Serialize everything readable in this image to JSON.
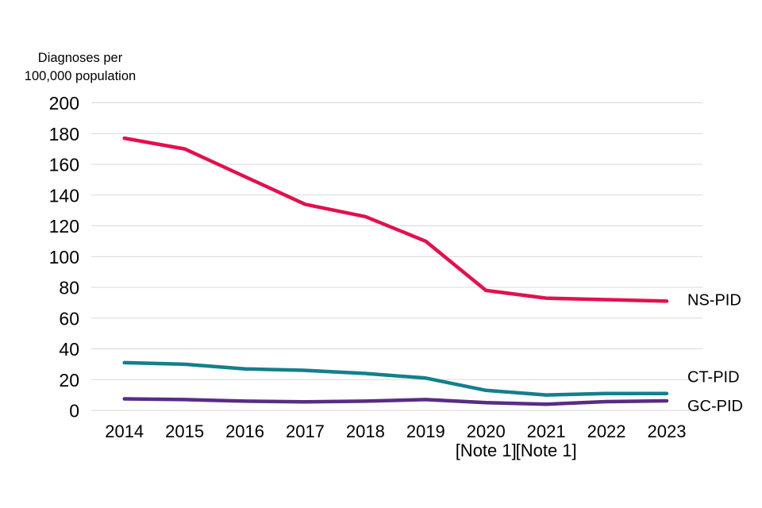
{
  "page": {
    "background_color": "#ffffff"
  },
  "chart_data": {
    "type": "line",
    "title": "",
    "y_axis_title": "Diagnoses per\n100,000 population",
    "xlabel": "",
    "ylabel": "Diagnoses per 100,000 population",
    "ylim": [
      0,
      200
    ],
    "ytick_step": 20,
    "y_tick_labels": [
      "0",
      "20",
      "40",
      "60",
      "80",
      "100",
      "120",
      "140",
      "160",
      "180",
      "200"
    ],
    "grid": true,
    "grid_color": "#d9d9d9",
    "text_color": "#000000",
    "legend_position": "end-of-line-labels",
    "categories": [
      "2014",
      "2015",
      "2016",
      "2017",
      "2018",
      "2019",
      "2020",
      "2021",
      "2022",
      "2023"
    ],
    "category_notes": [
      "",
      "",
      "",
      "",
      "",
      "",
      "[Note 1]",
      "[Note 1]",
      "",
      ""
    ],
    "series": [
      {
        "name": "NS-PID",
        "color": "#e1114e",
        "values": [
          177,
          170,
          152,
          134,
          126,
          110,
          78,
          73,
          72,
          71
        ]
      },
      {
        "name": "CT-PID",
        "color": "#13808b",
        "values": [
          31,
          30,
          27,
          26,
          24,
          21,
          13,
          10,
          11,
          11
        ]
      },
      {
        "name": "GC-PID",
        "color": "#582c87",
        "values": [
          7.5,
          7,
          6,
          5.5,
          6,
          7,
          5,
          4,
          5.7,
          6.2
        ]
      }
    ]
  }
}
